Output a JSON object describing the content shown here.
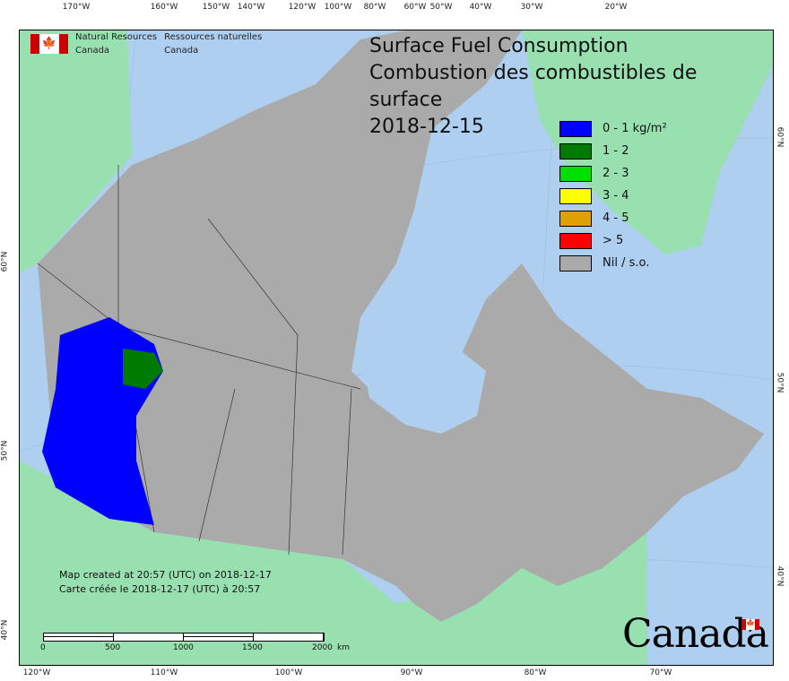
{
  "top_longitudes": [
    "170°W",
    "160°W",
    "150°W",
    "140°W",
    "120°W",
    "100°W",
    "80°W",
    "60°W",
    "50°W",
    "40°W",
    "30°W",
    "20°W"
  ],
  "bottom_longitudes": [
    "120°W",
    "110°W",
    "100°W",
    "90°W",
    "80°W",
    "70°W"
  ],
  "left_latitudes": [
    "60°N",
    "50°N",
    "40°N"
  ],
  "right_latitudes": [
    "60°N",
    "50°N",
    "40°N"
  ],
  "agency": {
    "en_line1": "Natural Resources",
    "en_line2": "Canada",
    "fr_line1": "Ressources naturelles",
    "fr_line2": "Canada"
  },
  "title": {
    "en": "Surface Fuel Consumption",
    "fr": "Combustion des combustibles de surface",
    "date": "2018-12-15"
  },
  "legend": [
    {
      "label": "0 - 1 kg/m²",
      "color": "#0000ff"
    },
    {
      "label": "1 - 2",
      "color": "#007a00"
    },
    {
      "label": "2 - 3",
      "color": "#00e000"
    },
    {
      "label": "3 - 4",
      "color": "#ffff00"
    },
    {
      "label": "4 - 5",
      "color": "#e0a000"
    },
    {
      "label": "> 5",
      "color": "#ff0000"
    },
    {
      "label": "Nil / s.o.",
      "color": "#aaaaaa"
    }
  ],
  "note": {
    "en": "Map created at 20:57 (UTC) on 2018-12-17",
    "fr": "Carte créée le 2018-12-17 (UTC) à 20:57"
  },
  "scale_bar": {
    "labels": [
      "0",
      "500",
      "1000",
      "1500",
      "2000"
    ],
    "unit": "km"
  },
  "wordmark": "Canada",
  "colors": {
    "water": "#afcff0",
    "foreign_land": "#98e0b0",
    "canada_nil": "#aaaaaa"
  }
}
